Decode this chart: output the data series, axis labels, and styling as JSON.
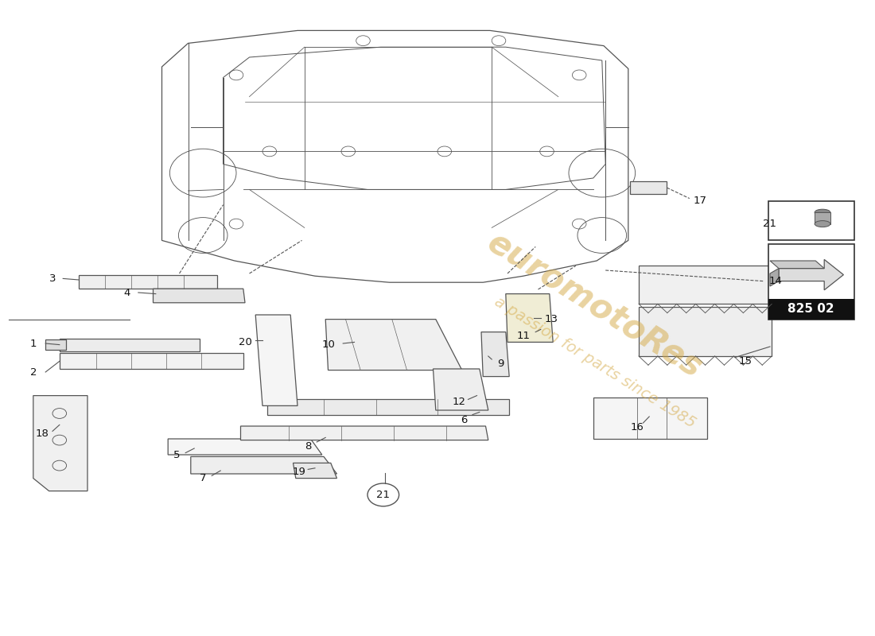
{
  "bg": "#ffffff",
  "lc": "#555555",
  "part_number": "825 02",
  "watermark_line1": "euromotoRes",
  "watermark_line2": "a passion for parts since 1985",
  "watermark_color": "#d4a843"
}
